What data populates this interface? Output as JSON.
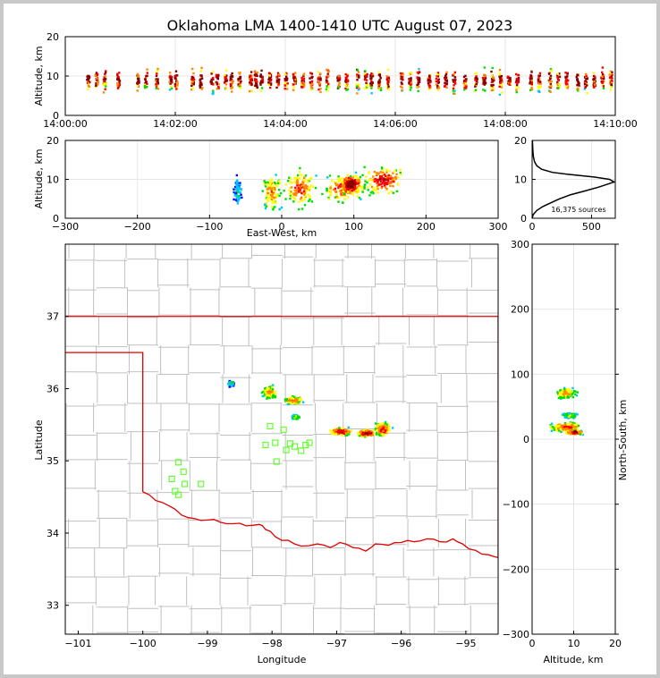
{
  "title": "Oklahoma LMA 1400-1410 UTC August 07, 2023",
  "colors": {
    "county": "#c0c0c0",
    "state_border": "#e00000",
    "station": "#66ff33",
    "grid": "#e6e6e6",
    "density": [
      "#7700aa",
      "#0000ff",
      "#00c8ff",
      "#00dd00",
      "#ffff00",
      "#ff8800",
      "#ff0000",
      "#880000"
    ]
  },
  "chart_data": [
    {
      "id": "time_height",
      "type": "scatter",
      "xlabel": "",
      "ylabel": "Altitude, km",
      "x_ticks": [
        "14:00:00",
        "14:02:00",
        "14:04:00",
        "14:06:00",
        "14:08:00",
        "14:10:00"
      ],
      "xlim_minutes": [
        0,
        10
      ],
      "ylim": [
        0,
        20
      ],
      "y_ticks": [
        "0",
        "10",
        "20"
      ],
      "grid": true,
      "activity_columns_minutes": [
        0.4,
        0.55,
        0.7,
        0.95,
        1.3,
        1.45,
        1.65,
        1.9,
        2.0,
        2.3,
        2.45,
        2.65,
        2.75,
        2.9,
        3.0,
        3.15,
        3.35,
        3.45,
        3.55,
        3.7,
        3.85,
        4.0,
        4.15,
        4.3,
        4.45,
        4.6,
        4.75,
        4.95,
        5.1,
        5.3,
        5.45,
        5.55,
        5.7,
        5.85,
        6.1,
        6.25,
        6.4,
        6.6,
        6.75,
        6.9,
        7.05,
        7.25,
        7.45,
        7.6,
        7.75,
        7.9,
        8.05,
        8.2,
        8.45,
        8.6,
        8.8,
        8.95,
        9.1,
        9.3,
        9.45,
        9.6,
        9.75,
        9.9
      ]
    },
    {
      "id": "east_west_altitude",
      "type": "heatmap",
      "xlabel": "East-West, km",
      "ylabel": "Altitude, km",
      "xlim": [
        -300,
        300
      ],
      "ylim": [
        0,
        20
      ],
      "x_ticks": [
        "−300",
        "−200",
        "−100",
        "0",
        "100",
        "200",
        "300"
      ],
      "y_ticks": [
        "0",
        "10",
        "20"
      ],
      "grid": true,
      "clusters": [
        {
          "x": -62,
          "alt": 7,
          "w": 8,
          "h": 9,
          "intensity": 0.3
        },
        {
          "x": -15,
          "alt": 7,
          "w": 22,
          "h": 13,
          "intensity": 0.65
        },
        {
          "x": 25,
          "alt": 8,
          "w": 32,
          "h": 12,
          "intensity": 0.75
        },
        {
          "x": 85,
          "alt": 8,
          "w": 45,
          "h": 9,
          "intensity": 0.8
        },
        {
          "x": 95,
          "alt": 9,
          "w": 22,
          "h": 6,
          "intensity": 1.0
        },
        {
          "x": 140,
          "alt": 10,
          "w": 42,
          "h": 9,
          "intensity": 0.85
        }
      ]
    },
    {
      "id": "altitude_histogram",
      "type": "line",
      "xlabel": "",
      "ylabel": "",
      "xlim": [
        0,
        700
      ],
      "ylim": [
        0,
        20
      ],
      "x_ticks": [
        "0",
        "500"
      ],
      "y_ticks": [
        "0",
        "10",
        "20"
      ],
      "annotation": "16,375 sources",
      "profile": [
        [
          0,
          0
        ],
        [
          10,
          1
        ],
        [
          40,
          2
        ],
        [
          90,
          3
        ],
        [
          160,
          4
        ],
        [
          230,
          5
        ],
        [
          320,
          6
        ],
        [
          440,
          7
        ],
        [
          560,
          8
        ],
        [
          640,
          8.8
        ],
        [
          690,
          9.3
        ],
        [
          650,
          10
        ],
        [
          520,
          10.6
        ],
        [
          330,
          11.2
        ],
        [
          170,
          11.8
        ],
        [
          80,
          12.6
        ],
        [
          40,
          13.5
        ],
        [
          20,
          14.5
        ],
        [
          10,
          16
        ],
        [
          5,
          18
        ],
        [
          2,
          20
        ]
      ]
    },
    {
      "id": "plan_view",
      "type": "heatmap",
      "xlabel": "Longitude",
      "ylabel": "Latitude",
      "xlim": [
        -101.2,
        -94.5
      ],
      "ylim": [
        32.6,
        38.0
      ],
      "x_ticks": [
        "−101",
        "−100",
        "−99",
        "−98",
        "−97",
        "−96",
        "−95"
      ],
      "y_ticks": [
        "33",
        "34",
        "35",
        "36",
        "37"
      ],
      "grid": true,
      "state_border_ok_north_lat": 37.0,
      "panhandle_south_lat": 36.5,
      "panhandle_east_lon": -100.0,
      "red_river": [
        [
          -100.0,
          34.57
        ],
        [
          -99.8,
          34.45
        ],
        [
          -99.6,
          34.38
        ],
        [
          -99.4,
          34.25
        ],
        [
          -99.2,
          34.2
        ],
        [
          -99.0,
          34.18
        ],
        [
          -98.8,
          34.15
        ],
        [
          -98.6,
          34.13
        ],
        [
          -98.4,
          34.1
        ],
        [
          -98.2,
          34.12
        ],
        [
          -98.1,
          34.05
        ],
        [
          -97.95,
          33.95
        ],
        [
          -97.75,
          33.9
        ],
        [
          -97.55,
          33.82
        ],
        [
          -97.3,
          33.85
        ],
        [
          -97.1,
          33.8
        ],
        [
          -96.95,
          33.87
        ],
        [
          -96.75,
          33.8
        ],
        [
          -96.55,
          33.75
        ],
        [
          -96.4,
          33.85
        ],
        [
          -96.2,
          33.83
        ],
        [
          -96.0,
          33.87
        ],
        [
          -95.8,
          33.88
        ],
        [
          -95.6,
          33.92
        ],
        [
          -95.4,
          33.88
        ],
        [
          -95.2,
          33.92
        ],
        [
          -95.05,
          33.85
        ],
        [
          -94.85,
          33.76
        ],
        [
          -94.65,
          33.7
        ],
        [
          -94.5,
          33.66
        ]
      ],
      "lma_stations": [
        [
          -99.45,
          34.98
        ],
        [
          -99.55,
          34.75
        ],
        [
          -99.37,
          34.85
        ],
        [
          -99.5,
          34.58
        ],
        [
          -99.45,
          34.53
        ],
        [
          -99.35,
          34.68
        ],
        [
          -99.1,
          34.68
        ],
        [
          -98.03,
          35.48
        ],
        [
          -97.82,
          35.43
        ],
        [
          -98.1,
          35.22
        ],
        [
          -97.95,
          35.25
        ],
        [
          -97.72,
          35.24
        ],
        [
          -97.78,
          35.15
        ],
        [
          -97.65,
          35.2
        ],
        [
          -97.55,
          35.14
        ],
        [
          -97.48,
          35.22
        ],
        [
          -97.42,
          35.25
        ],
        [
          -97.93,
          34.99
        ]
      ],
      "clusters": [
        {
          "lon": -98.65,
          "lat": 36.08,
          "w": 0.08,
          "h": 0.06,
          "intensity": 0.4
        },
        {
          "lon": -98.05,
          "lat": 35.96,
          "w": 0.18,
          "h": 0.14,
          "intensity": 0.7
        },
        {
          "lon": -97.68,
          "lat": 35.85,
          "w": 0.22,
          "h": 0.08,
          "intensity": 0.75
        },
        {
          "lon": -97.65,
          "lat": 35.62,
          "w": 0.1,
          "h": 0.05,
          "intensity": 0.5
        },
        {
          "lon": -96.95,
          "lat": 35.42,
          "w": 0.28,
          "h": 0.08,
          "intensity": 0.9
        },
        {
          "lon": -96.55,
          "lat": 35.4,
          "w": 0.22,
          "h": 0.07,
          "intensity": 1.0
        },
        {
          "lon": -96.3,
          "lat": 35.45,
          "w": 0.2,
          "h": 0.14,
          "intensity": 0.85
        }
      ]
    },
    {
      "id": "altitude_north_south",
      "type": "heatmap",
      "xlabel": "Altitude, km",
      "ylabel": "North-South, km",
      "xlim": [
        0,
        20
      ],
      "ylim": [
        -300,
        300
      ],
      "x_ticks": [
        "0",
        "10",
        "20"
      ],
      "y_ticks": [
        "−300",
        "−200",
        "−100",
        "0",
        "100",
        "200",
        "300"
      ],
      "grid": true,
      "clusters": [
        {
          "alt": 8,
          "ns": 72,
          "w": 4,
          "h": 14,
          "intensity": 0.65
        },
        {
          "alt": 9,
          "ns": 38,
          "w": 3,
          "h": 6,
          "intensity": 0.5
        },
        {
          "alt": 8,
          "ns": 20,
          "w": 6,
          "h": 12,
          "intensity": 0.8
        },
        {
          "alt": 10,
          "ns": 12,
          "w": 3,
          "h": 5,
          "intensity": 1.0
        }
      ]
    }
  ]
}
